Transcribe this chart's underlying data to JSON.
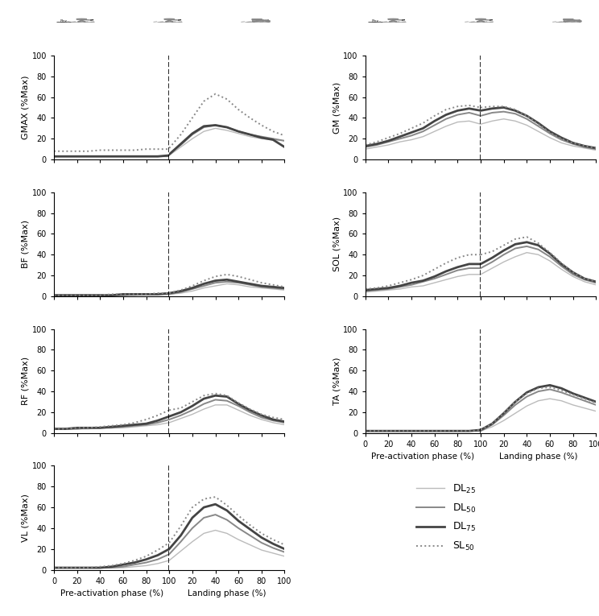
{
  "col_DL25": "#bbbbbb",
  "col_DL50": "#888888",
  "col_DL75": "#444444",
  "col_SL50": "#888888",
  "lw_DL25": 1.0,
  "lw_DL50": 1.4,
  "lw_DL75": 2.0,
  "lw_SL50": 1.4,
  "pre_x": [
    0,
    10,
    20,
    30,
    40,
    50,
    60,
    70,
    80,
    90,
    100
  ],
  "land_x": [
    0,
    10,
    20,
    30,
    40,
    50,
    60,
    70,
    80,
    90,
    100
  ],
  "GMAX": {
    "DL25_pre": [
      3,
      3,
      3,
      3,
      3,
      3,
      3,
      3,
      3,
      3,
      3
    ],
    "DL50_pre": [
      3,
      3,
      3,
      3,
      3,
      3,
      3,
      3,
      3,
      3,
      3
    ],
    "DL75_pre": [
      3,
      3,
      3,
      3,
      3,
      3,
      3,
      3,
      3,
      3,
      4
    ],
    "SL50_pre": [
      8,
      8,
      8,
      8,
      9,
      9,
      9,
      9,
      10,
      10,
      10
    ],
    "DL25_land": [
      4,
      12,
      20,
      27,
      30,
      28,
      25,
      22,
      20,
      19,
      18
    ],
    "DL50_land": [
      5,
      14,
      24,
      31,
      33,
      31,
      27,
      24,
      22,
      20,
      18
    ],
    "DL75_land": [
      5,
      15,
      25,
      32,
      33,
      31,
      27,
      24,
      21,
      19,
      12
    ],
    "SL50_land": [
      11,
      24,
      40,
      56,
      63,
      58,
      48,
      40,
      33,
      27,
      23
    ]
  },
  "BF": {
    "DL25_pre": [
      1,
      1,
      1,
      1,
      1,
      1,
      1,
      1,
      2,
      2,
      2
    ],
    "DL50_pre": [
      1,
      1,
      1,
      1,
      1,
      1,
      1,
      2,
      2,
      2,
      2
    ],
    "DL75_pre": [
      1,
      1,
      1,
      1,
      1,
      1,
      2,
      2,
      2,
      2,
      3
    ],
    "SL50_pre": [
      1,
      1,
      1,
      1,
      1,
      2,
      2,
      2,
      2,
      3,
      3
    ],
    "DL25_land": [
      2,
      3,
      5,
      8,
      10,
      12,
      11,
      9,
      8,
      7,
      6
    ],
    "DL50_land": [
      2,
      4,
      7,
      10,
      13,
      14,
      13,
      11,
      9,
      8,
      7
    ],
    "DL75_land": [
      3,
      5,
      8,
      12,
      15,
      16,
      14,
      12,
      10,
      9,
      8
    ],
    "SL50_land": [
      3,
      6,
      10,
      15,
      19,
      21,
      19,
      16,
      13,
      11,
      9
    ]
  },
  "RF": {
    "DL25_pre": [
      4,
      4,
      4,
      4,
      5,
      5,
      5,
      6,
      7,
      8,
      10
    ],
    "DL50_pre": [
      4,
      4,
      4,
      5,
      5,
      5,
      6,
      7,
      8,
      10,
      13
    ],
    "DL75_pre": [
      4,
      4,
      5,
      5,
      5,
      6,
      7,
      8,
      9,
      12,
      16
    ],
    "SL50_pre": [
      4,
      4,
      5,
      5,
      6,
      7,
      8,
      10,
      13,
      17,
      22
    ],
    "DL25_land": [
      10,
      14,
      18,
      23,
      27,
      27,
      22,
      17,
      13,
      10,
      8
    ],
    "DL50_land": [
      13,
      17,
      22,
      28,
      32,
      31,
      26,
      20,
      15,
      12,
      10
    ],
    "DL75_land": [
      16,
      20,
      26,
      33,
      36,
      35,
      28,
      22,
      17,
      13,
      11
    ],
    "SL50_land": [
      22,
      24,
      30,
      36,
      38,
      36,
      29,
      23,
      18,
      15,
      13
    ]
  },
  "VL": {
    "DL25_pre": [
      2,
      2,
      2,
      2,
      2,
      2,
      2,
      3,
      4,
      6,
      9
    ],
    "DL50_pre": [
      2,
      2,
      2,
      2,
      2,
      2,
      3,
      5,
      7,
      10,
      15
    ],
    "DL75_pre": [
      2,
      2,
      2,
      2,
      2,
      3,
      5,
      7,
      10,
      14,
      20
    ],
    "SL50_pre": [
      2,
      2,
      2,
      2,
      3,
      4,
      6,
      9,
      13,
      19,
      26
    ],
    "DL25_land": [
      9,
      18,
      27,
      35,
      38,
      35,
      29,
      24,
      19,
      16,
      13
    ],
    "DL50_land": [
      15,
      27,
      40,
      50,
      53,
      48,
      40,
      33,
      26,
      21,
      17
    ],
    "DL75_land": [
      20,
      33,
      50,
      60,
      63,
      57,
      47,
      39,
      31,
      25,
      20
    ],
    "SL50_land": [
      26,
      42,
      60,
      68,
      70,
      62,
      52,
      43,
      35,
      29,
      24
    ]
  },
  "GM": {
    "DL25_pre": [
      10,
      12,
      14,
      17,
      19,
      22,
      27,
      32,
      36,
      37,
      34
    ],
    "DL50_pre": [
      12,
      14,
      17,
      20,
      23,
      27,
      33,
      39,
      43,
      45,
      42
    ],
    "DL75_pre": [
      13,
      15,
      18,
      22,
      26,
      30,
      37,
      43,
      47,
      49,
      47
    ],
    "SL50_pre": [
      14,
      17,
      21,
      25,
      30,
      35,
      42,
      48,
      51,
      52,
      50
    ],
    "DL25_land": [
      34,
      37,
      39,
      37,
      33,
      27,
      21,
      16,
      13,
      11,
      9
    ],
    "DL50_land": [
      42,
      45,
      46,
      44,
      39,
      32,
      25,
      19,
      15,
      12,
      10
    ],
    "DL75_land": [
      47,
      49,
      50,
      47,
      42,
      35,
      27,
      21,
      16,
      13,
      11
    ],
    "SL50_land": [
      50,
      51,
      51,
      48,
      42,
      34,
      26,
      20,
      16,
      13,
      11
    ]
  },
  "SOL": {
    "DL25_pre": [
      4,
      5,
      6,
      7,
      9,
      10,
      13,
      16,
      19,
      21,
      21
    ],
    "DL50_pre": [
      5,
      6,
      7,
      9,
      11,
      14,
      17,
      21,
      25,
      27,
      27
    ],
    "DL75_pre": [
      6,
      7,
      8,
      10,
      13,
      15,
      19,
      24,
      28,
      31,
      31
    ],
    "SL50_pre": [
      7,
      8,
      10,
      13,
      16,
      20,
      26,
      32,
      37,
      40,
      40
    ],
    "DL25_land": [
      21,
      27,
      33,
      38,
      42,
      40,
      34,
      26,
      19,
      14,
      11
    ],
    "DL50_land": [
      27,
      33,
      40,
      46,
      48,
      45,
      38,
      29,
      21,
      16,
      13
    ],
    "DL75_land": [
      31,
      37,
      44,
      50,
      52,
      49,
      41,
      31,
      23,
      17,
      14
    ],
    "SL50_land": [
      40,
      43,
      49,
      55,
      57,
      51,
      42,
      32,
      23,
      17,
      14
    ]
  },
  "TA": {
    "DL25_pre": [
      2,
      2,
      2,
      2,
      2,
      2,
      2,
      2,
      2,
      2,
      2
    ],
    "DL50_pre": [
      2,
      2,
      2,
      2,
      2,
      2,
      2,
      2,
      2,
      2,
      2
    ],
    "DL75_pre": [
      2,
      2,
      2,
      2,
      2,
      2,
      2,
      2,
      2,
      2,
      3
    ],
    "SL50_pre": [
      2,
      2,
      2,
      2,
      2,
      2,
      2,
      2,
      2,
      2,
      3
    ],
    "DL25_land": [
      2,
      6,
      12,
      19,
      26,
      31,
      33,
      31,
      27,
      24,
      21
    ],
    "DL50_land": [
      2,
      8,
      17,
      27,
      35,
      40,
      42,
      39,
      35,
      31,
      27
    ],
    "DL75_land": [
      3,
      9,
      19,
      30,
      39,
      44,
      46,
      43,
      38,
      34,
      30
    ],
    "SL50_land": [
      3,
      9,
      19,
      30,
      38,
      43,
      44,
      41,
      37,
      33,
      29
    ]
  },
  "ylabel_GMAX": "GMAX (%Max)",
  "ylabel_BF": "BF (%Max)",
  "ylabel_RF": "RF (%Max)",
  "ylabel_VL": "VL (%Max)",
  "ylabel_GM": "GM (%Max)",
  "ylabel_SOL": "SOL (%Max)",
  "ylabel_TA": "TA (%Max)",
  "xlabel_pre": "Pre-activation phase (%)",
  "xlabel_land": "Landing phase (%)",
  "yticks": [
    0,
    20,
    40,
    60,
    80,
    100
  ],
  "xticks": [
    0,
    20,
    40,
    60,
    80,
    100
  ],
  "bg_color": "#ffffff"
}
